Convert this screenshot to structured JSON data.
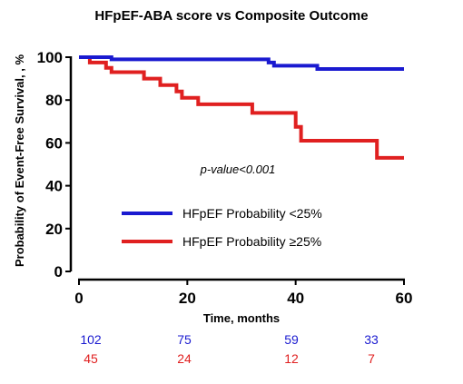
{
  "chart_data": {
    "type": "line",
    "title": "HFpEF-ABA score vs Composite Outcome",
    "xlabel": "Time, months",
    "ylabel": "Probability of Event-Free Survival, , %",
    "xlim": [
      0,
      60
    ],
    "ylim": [
      0,
      100
    ],
    "xticks": [
      "0",
      "20",
      "40",
      "60"
    ],
    "yticks": [
      "0",
      "20",
      "40",
      "60",
      "80",
      "100"
    ],
    "grid": false,
    "legend_position": "center-left",
    "annotation": "p-value<0.001",
    "series": [
      {
        "name": "HFpEF Probability <25%",
        "color": "#1a1ad0",
        "step": true,
        "points": [
          [
            0,
            100
          ],
          [
            6,
            100
          ],
          [
            6,
            99
          ],
          [
            35,
            99
          ],
          [
            35,
            97.5
          ],
          [
            36,
            97.5
          ],
          [
            36,
            96
          ],
          [
            44,
            96
          ],
          [
            44,
            94.5
          ],
          [
            60,
            94.5
          ]
        ]
      },
      {
        "name": "HFpEF Probability ≥25%",
        "color": "#e02020",
        "step": true,
        "points": [
          [
            0,
            100
          ],
          [
            2,
            100
          ],
          [
            2,
            97.5
          ],
          [
            5,
            97.5
          ],
          [
            5,
            95
          ],
          [
            6,
            95
          ],
          [
            6,
            93
          ],
          [
            12,
            93
          ],
          [
            12,
            90
          ],
          [
            15,
            90
          ],
          [
            15,
            87
          ],
          [
            18,
            87
          ],
          [
            18,
            84
          ],
          [
            19,
            84
          ],
          [
            19,
            81
          ],
          [
            22,
            81
          ],
          [
            22,
            78
          ],
          [
            32,
            78
          ],
          [
            32,
            74
          ],
          [
            40,
            74
          ],
          [
            40,
            67.5
          ],
          [
            41,
            67.5
          ],
          [
            41,
            61
          ],
          [
            55,
            61
          ],
          [
            55,
            53
          ],
          [
            60,
            53
          ]
        ]
      }
    ],
    "risk_table": {
      "times": [
        0,
        20,
        40,
        60
      ],
      "rows": [
        {
          "series": "HFpEF Probability <25%",
          "color": "#1a1ad0",
          "values": [
            "102",
            "75",
            "59",
            "33"
          ]
        },
        {
          "series": "HFpEF Probability ≥25%",
          "color": "#e02020",
          "values": [
            "45",
            "24",
            "12",
            "7"
          ]
        }
      ]
    }
  }
}
